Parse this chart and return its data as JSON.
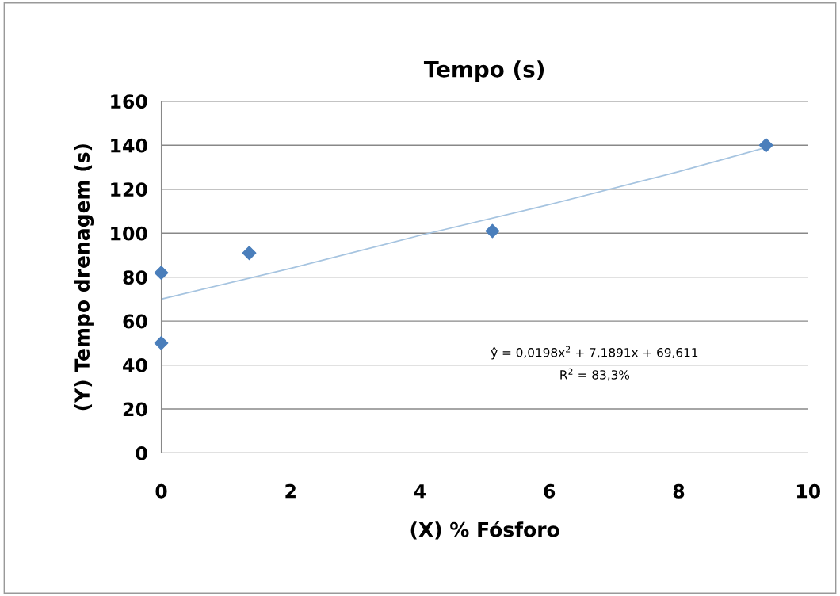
{
  "chart_data": {
    "type": "scatter",
    "title": "Tempo (s)",
    "xlabel": "(X) % Fósforo",
    "ylabel": "(Y) Tempo drenagem (s)",
    "xlim": [
      0,
      10
    ],
    "xticks": [
      0,
      2,
      4,
      6,
      8,
      10
    ],
    "ylim": [
      0,
      160
    ],
    "yticks": [
      0,
      20,
      40,
      60,
      80,
      100,
      120,
      140,
      160
    ],
    "grid": "y",
    "marker": "diamond",
    "series": [
      {
        "color": "#4a7ebb",
        "x": [
          0,
          0,
          1.36,
          5.12,
          9.35
        ],
        "values": [
          82,
          50,
          91,
          101,
          140
        ]
      },
      {
        "type": "line",
        "color": "#a6c4e0",
        "marker": "none",
        "x": [
          0,
          2,
          4,
          6,
          8,
          9.35
        ],
        "values": [
          70,
          84,
          99,
          113,
          128,
          139
        ]
      }
    ],
    "annotations": [
      "ŷ = 0,0198x$^{2}$ + 7,1891x + 69,611",
      "R$^{2}$ = 83,3%"
    ]
  }
}
